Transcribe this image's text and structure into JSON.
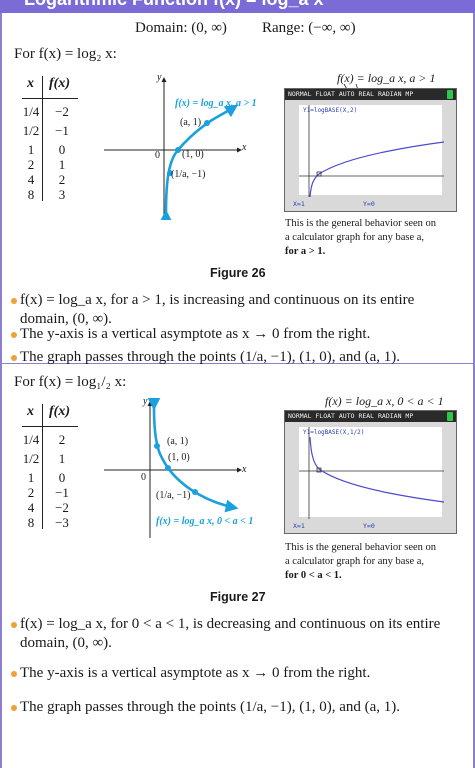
{
  "header": {
    "title": "Logarithmic Function   f(x) = log_a x"
  },
  "domain_range": {
    "domain": "Domain: (0, ∞)",
    "range": "Range: (−∞, ∞)"
  },
  "section1": {
    "intro": "For f(x) = log₂ x:",
    "table": {
      "x_header": "x",
      "y_header": "f(x)",
      "x": [
        "1/4",
        "1/2",
        "1",
        "2",
        "4",
        "8"
      ],
      "y": [
        "−2",
        "−1",
        "0",
        "1",
        "2",
        "3"
      ]
    },
    "graph": {
      "y_axis": "y",
      "x_axis": "x",
      "origin": "0",
      "curve_label": "f(x) = log_a x, a > 1",
      "point_a": "(a, 1)",
      "point_10": "(1, 0)",
      "point_inv": "(1/a, −1)"
    },
    "calc": {
      "title_label": "f(x) = log_a x, a > 1",
      "topbar": "NORMAL FLOAT AUTO REAL RADIAN MP",
      "equation": "Y1=logBASE(X,2)",
      "readout_x": "X=1",
      "readout_y": "Y=0"
    },
    "caption": [
      "This is the general behavior seen on",
      "a calculator graph for any base a,",
      "for a > 1."
    ],
    "figure": "Figure 26",
    "bullets": [
      "f(x) = log_a x, for a > 1, is increasing and continuous on its entire domain, (0, ∞).",
      "The y-axis is a vertical asymptote as x → 0 from the right.",
      "The graph passes through the points (1/a, −1), (1, 0), and (a, 1)."
    ]
  },
  "section2": {
    "intro": "For f(x) = log₁/₂ x:",
    "table": {
      "x_header": "x",
      "y_header": "f(x)",
      "x": [
        "1/4",
        "1/2",
        "1",
        "2",
        "4",
        "8"
      ],
      "y": [
        "2",
        "1",
        "0",
        "−1",
        "−2",
        "−3"
      ]
    },
    "graph": {
      "y_axis": "y",
      "x_axis": "x",
      "origin": "0",
      "curve_label": "f(x) = log_a x, 0 < a < 1",
      "point_a": "(a, 1)",
      "point_10": "(1, 0)",
      "point_inv": "(1/a, −1)"
    },
    "calc": {
      "title_label": "f(x) = log_a x, 0 < a < 1",
      "topbar": "NORMAL FLOAT AUTO REAL RADIAN MP",
      "equation": "Y1=logBASE(X,1/2)",
      "readout_x": "X=1",
      "readout_y": "Y=0"
    },
    "caption": [
      "This is the general behavior seen on",
      "a calculator graph for any base a,",
      "for 0 < a < 1."
    ],
    "figure": "Figure 27",
    "bullets": [
      "f(x) = log_a x, for 0 < a < 1, is decreasing and continuous on its entire domain, (0, ∞).",
      "The y-axis is a vertical asymptote as x → 0 from the right.",
      "The graph passes through the points (1/a, −1), (1, 0), and (a, 1)."
    ]
  },
  "colors": {
    "header": "#7b6bd6",
    "accent": "#f0a03a",
    "curve": "#1aa0dc",
    "calc_curve": "#4a4ad0"
  }
}
